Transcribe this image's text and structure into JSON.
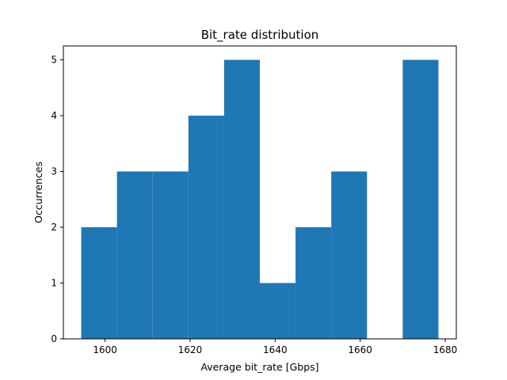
{
  "chart_data": {
    "type": "bar",
    "title": "Bit_rate distribution",
    "xlabel": "Average bit_rate [Gbps]",
    "ylabel": "Occurrences",
    "bin_edges": [
      1594.4,
      1602.8,
      1611.2,
      1619.6,
      1628.0,
      1636.4,
      1644.8,
      1653.2,
      1661.6,
      1670.0,
      1678.4
    ],
    "counts": [
      2,
      3,
      3,
      4,
      5,
      1,
      2,
      3,
      0,
      5
    ],
    "xlim": [
      1590.2,
      1682.6
    ],
    "ylim": [
      0,
      5.25
    ],
    "xticks": [
      1600,
      1620,
      1640,
      1660,
      1680
    ],
    "yticks": [
      0,
      1,
      2,
      3,
      4,
      5
    ],
    "grid": false,
    "bar_color": "#1f77b4"
  }
}
